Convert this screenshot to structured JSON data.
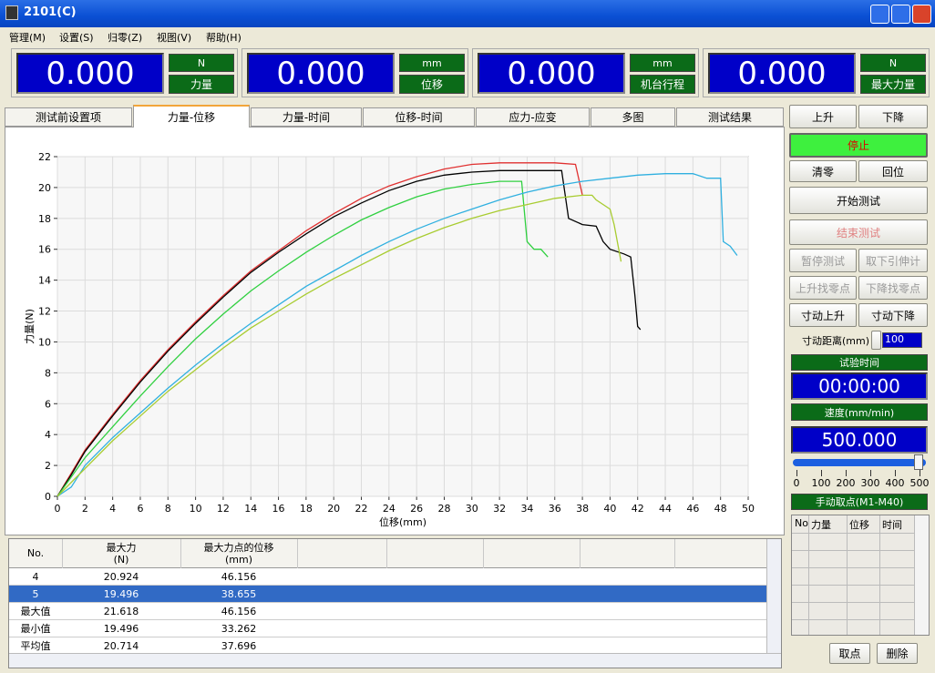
{
  "window": {
    "title": "2101(C)"
  },
  "menu": [
    "管理(M)",
    "设置(S)",
    "归零(Z)",
    "视图(V)",
    "帮助(H)"
  ],
  "readouts": [
    {
      "value": "0.000",
      "unit": "N",
      "label": "力量"
    },
    {
      "value": "0.000",
      "unit": "mm",
      "label": "位移"
    },
    {
      "value": "0.000",
      "unit": "mm",
      "label": "机台行程"
    },
    {
      "value": "0.000",
      "unit": "N",
      "label": "最大力量"
    }
  ],
  "tabs": {
    "items": [
      "测试前设置项",
      "力量-位移",
      "力量-时间",
      "位移-时间",
      "应力-应变",
      "多图",
      "测试结果"
    ],
    "active": 1
  },
  "chart_data": {
    "type": "line",
    "xlabel": "位移(mm)",
    "ylabel": "力量(N)",
    "xlim": [
      0,
      50
    ],
    "ylim": [
      0,
      22
    ],
    "xticks": [
      0,
      2,
      4,
      6,
      8,
      10,
      12,
      14,
      16,
      18,
      20,
      22,
      24,
      26,
      28,
      30,
      32,
      34,
      36,
      38,
      40,
      42,
      44,
      46,
      48,
      50
    ],
    "yticks": [
      0,
      2,
      4,
      6,
      8,
      10,
      12,
      14,
      16,
      18,
      20,
      22
    ],
    "grid": true,
    "series": [
      {
        "color": "#e03030",
        "x": [
          0,
          1,
          2,
          4,
          6,
          8,
          10,
          12,
          14,
          16,
          18,
          20,
          22,
          24,
          26,
          28,
          30,
          32,
          34,
          36,
          37.5,
          38
        ],
        "values": [
          0,
          1.5,
          3,
          5.3,
          7.5,
          9.5,
          11.3,
          13,
          14.6,
          15.9,
          17.2,
          18.3,
          19.3,
          20.1,
          20.7,
          21.2,
          21.5,
          21.6,
          21.6,
          21.6,
          21.5,
          19.5
        ]
      },
      {
        "color": "#000000",
        "x": [
          0,
          1,
          2,
          4,
          6,
          8,
          10,
          12,
          14,
          16,
          18,
          20,
          22,
          24,
          26,
          28,
          30,
          32,
          36.5,
          37,
          38,
          39,
          39.5,
          40,
          41,
          41.5,
          41.8,
          42,
          42.2
        ],
        "values": [
          0,
          1.4,
          2.9,
          5.2,
          7.4,
          9.4,
          11.2,
          12.9,
          14.5,
          15.8,
          17,
          18.1,
          19,
          19.8,
          20.4,
          20.8,
          21,
          21.1,
          21.1,
          18,
          17.6,
          17.5,
          16.5,
          16,
          15.7,
          15.5,
          13,
          11,
          10.8
        ]
      },
      {
        "color": "#30d040",
        "x": [
          0,
          2,
          4,
          6,
          8,
          10,
          12,
          14,
          16,
          18,
          20,
          22,
          24,
          26,
          28,
          30,
          32,
          33.6,
          34,
          34.5,
          35,
          35.5
        ],
        "values": [
          0,
          2.5,
          4.5,
          6.5,
          8.4,
          10.2,
          11.8,
          13.3,
          14.6,
          15.8,
          16.9,
          17.9,
          18.7,
          19.4,
          19.9,
          20.2,
          20.4,
          20.4,
          16.5,
          16,
          16,
          15.5
        ]
      },
      {
        "color": "#30b0e0",
        "x": [
          0,
          1,
          2,
          4,
          6,
          8,
          10,
          12,
          14,
          16,
          18,
          20,
          22,
          24,
          26,
          28,
          30,
          32,
          34,
          36,
          38,
          40,
          42,
          44,
          46,
          47,
          48,
          48.2,
          48.7,
          49.2
        ],
        "values": [
          0,
          0.6,
          2,
          3.8,
          5.4,
          7,
          8.5,
          9.9,
          11.2,
          12.4,
          13.6,
          14.6,
          15.6,
          16.5,
          17.3,
          18,
          18.6,
          19.2,
          19.7,
          20.1,
          20.4,
          20.6,
          20.8,
          20.9,
          20.9,
          20.6,
          20.6,
          16.5,
          16.2,
          15.6
        ]
      },
      {
        "color": "#a8cc30",
        "x": [
          0,
          2,
          4,
          6,
          8,
          10,
          12,
          14,
          16,
          18,
          20,
          22,
          24,
          26,
          28,
          30,
          32,
          34,
          36,
          38,
          38.7,
          39,
          40,
          40.3,
          40.8
        ],
        "values": [
          0,
          1.8,
          3.6,
          5.2,
          6.8,
          8.2,
          9.6,
          10.9,
          12,
          13.1,
          14.1,
          15,
          15.9,
          16.7,
          17.4,
          18,
          18.5,
          18.9,
          19.3,
          19.5,
          19.5,
          19.2,
          18.6,
          17.6,
          15.2
        ]
      }
    ]
  },
  "results": {
    "headers": [
      [
        "No."
      ],
      [
        "最大力",
        "(N)"
      ],
      [
        "最大力点的位移",
        "(mm)"
      ]
    ],
    "rows": [
      [
        "4",
        "20.924",
        "46.156"
      ],
      [
        "5",
        "19.496",
        "38.655"
      ],
      [
        "最大值",
        "21.618",
        "46.156"
      ],
      [
        "最小值",
        "19.496",
        "33.262"
      ],
      [
        "平均值",
        "20.714",
        "37.696"
      ]
    ],
    "selected": 1
  },
  "controls": {
    "buttons": [
      "上升",
      "下降",
      "停止",
      "清零",
      "回位",
      "开始测试",
      "结束测试",
      "暂停测试",
      "取下引伸计",
      "上升找零点",
      "下降找零点",
      "寸动上升",
      "寸动下降"
    ],
    "jog_label": "寸动距离(mm)",
    "jog_value": "100",
    "time_label": "试验时间",
    "time_value": "00:00:00",
    "speed_label": "速度(mm/min)",
    "speed_value": "500.000",
    "speed_ticks": [
      0,
      100,
      200,
      300,
      400,
      500
    ],
    "points_label": "手动取点(M1-M40)",
    "points_headers": [
      "No",
      "力量",
      "位移",
      "时间"
    ],
    "point_buttons": [
      "取点",
      "删除"
    ]
  }
}
